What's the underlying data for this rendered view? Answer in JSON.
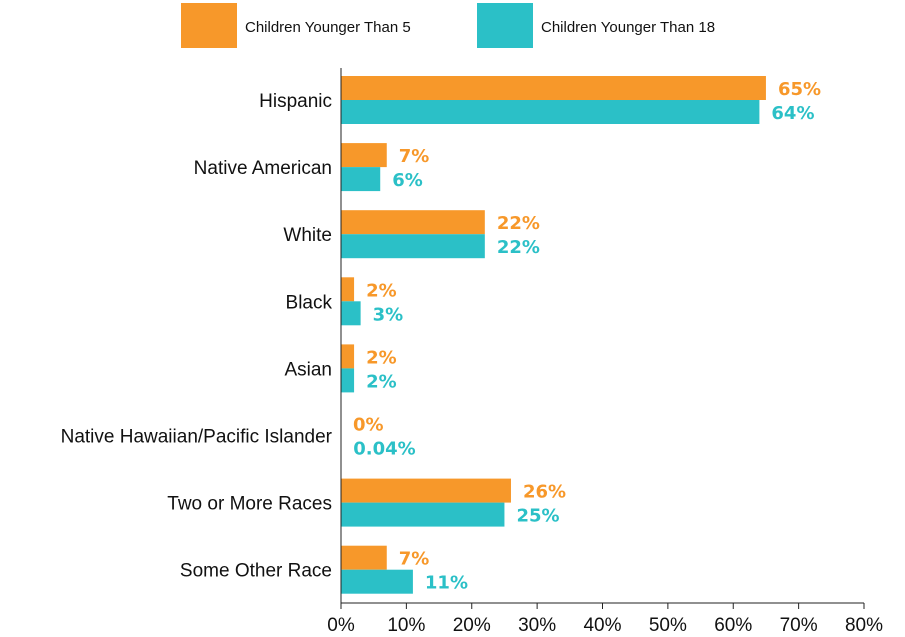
{
  "chart_data": {
    "type": "bar",
    "orientation": "horizontal",
    "categories": [
      "Hispanic",
      "Native American",
      "White",
      "Black",
      "Asian",
      "Native Hawaiian/Pacific Islander",
      "Two or More Races",
      "Some Other Race"
    ],
    "series": [
      {
        "name": "Children Younger Than 5",
        "color": "#F7982A",
        "values": [
          65,
          7,
          22,
          2,
          2,
          0,
          26,
          7
        ],
        "labels": [
          "65%",
          "7%",
          "22%",
          "2%",
          "2%",
          "0%",
          "26%",
          "7%"
        ]
      },
      {
        "name": "Children Younger Than 18",
        "color": "#2BC0C7",
        "values": [
          64,
          6,
          22,
          3,
          2,
          0.04,
          25,
          11
        ],
        "labels": [
          "64%",
          "6%",
          "22%",
          "3%",
          "2%",
          "0.04%",
          "25%",
          "11%"
        ]
      }
    ],
    "xlim": [
      0,
      80
    ],
    "x_ticks": [
      "0%",
      "10%",
      "20%",
      "30%",
      "40%",
      "50%",
      "60%",
      "70%",
      "80%"
    ],
    "xlabel": "",
    "ylabel": "",
    "grid": false,
    "legend_position": "top"
  }
}
